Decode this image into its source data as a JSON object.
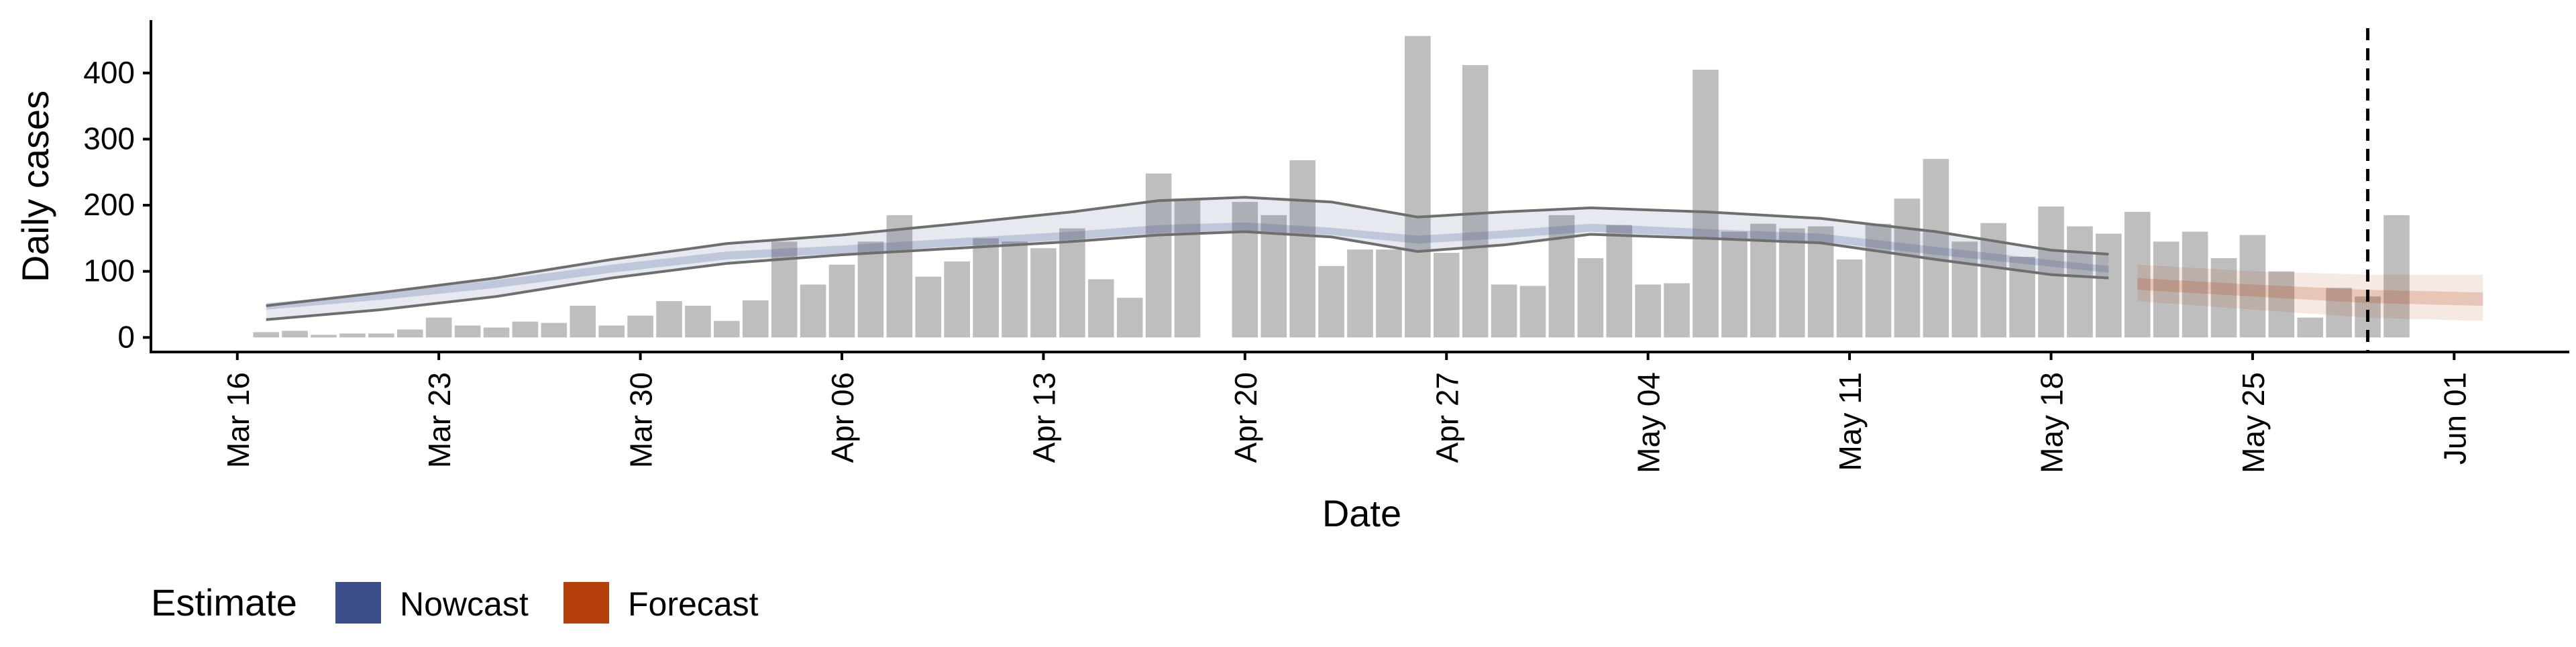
{
  "chart_data": {
    "type": "bar",
    "xlabel": "Date",
    "ylabel": "Daily cases",
    "x_tick_labels": [
      "Mar 16",
      "Mar 23",
      "Mar 30",
      "Apr 06",
      "Apr 13",
      "Apr 20",
      "Apr 27",
      "May 04",
      "May 11",
      "May 18",
      "May 25",
      "Jun 01"
    ],
    "x_tick_dates": [
      "2020-03-16",
      "2020-03-23",
      "2020-03-30",
      "2020-04-06",
      "2020-04-13",
      "2020-04-20",
      "2020-04-27",
      "2020-05-04",
      "2020-05-11",
      "2020-05-18",
      "2020-05-25",
      "2020-06-01"
    ],
    "y_ticks": [
      0,
      100,
      200,
      300,
      400
    ],
    "xlim": [
      "2020-03-13",
      "2020-06-05"
    ],
    "ylim": [
      -22,
      480
    ],
    "grid": false,
    "legend": {
      "title": "Estimate",
      "position": "bottom-left",
      "entries": [
        {
          "name": "Nowcast",
          "color": "#3b4e8a"
        },
        {
          "name": "Forecast",
          "color": "#b5400d"
        }
      ]
    },
    "reference_line": {
      "date": "2020-05-29",
      "style": "dashed"
    },
    "colors": {
      "bars": "#bebebe",
      "nowcast": "#3b4e8a",
      "forecast": "#b5400d",
      "bounds": "#6e6e6e",
      "axis": "#000000"
    },
    "bars": {
      "start_date": "2020-03-17",
      "values": [
        8,
        10,
        4,
        6,
        6,
        12,
        30,
        18,
        15,
        24,
        22,
        48,
        18,
        33,
        55,
        48,
        25,
        56,
        145,
        80,
        110,
        145,
        185,
        92,
        115,
        150,
        145,
        135,
        165,
        88,
        60,
        248,
        210,
        null,
        205,
        185,
        268,
        108,
        133,
        133,
        456,
        128,
        412,
        80,
        78,
        185,
        120,
        170,
        80,
        82,
        405,
        160,
        172,
        165,
        168,
        118,
        172,
        210,
        270,
        145,
        173,
        122,
        198,
        168,
        157,
        190,
        145,
        160,
        120,
        155,
        100,
        30,
        75,
        62,
        185
      ]
    },
    "nowcast": {
      "dates": [
        "2020-03-17",
        "2020-03-21",
        "2020-03-25",
        "2020-03-29",
        "2020-04-02",
        "2020-04-06",
        "2020-04-10",
        "2020-04-14",
        "2020-04-17",
        "2020-04-20",
        "2020-04-23",
        "2020-04-26",
        "2020-04-29",
        "2020-05-02",
        "2020-05-06",
        "2020-05-10",
        "2020-05-14",
        "2020-05-18",
        "2020-05-20"
      ],
      "lower": [
        42,
        57,
        75,
        98,
        118,
        127,
        138,
        148,
        158,
        162,
        155,
        142,
        150,
        160,
        152,
        145,
        125,
        107,
        98
      ],
      "upper": [
        52,
        67,
        87,
        110,
        130,
        139,
        150,
        160,
        170,
        174,
        166,
        154,
        162,
        172,
        164,
        157,
        137,
        117,
        108
      ],
      "outer_lower": [
        27,
        42,
        62,
        90,
        112,
        125,
        135,
        145,
        155,
        160,
        152,
        130,
        140,
        156,
        150,
        143,
        118,
        95,
        90
      ],
      "outer_upper": [
        48,
        68,
        90,
        118,
        142,
        155,
        172,
        190,
        207,
        212,
        205,
        182,
        190,
        196,
        190,
        180,
        160,
        132,
        126
      ]
    },
    "forecast": {
      "dates": [
        "2020-05-21",
        "2020-05-25",
        "2020-05-29",
        "2020-06-02"
      ],
      "lower": [
        55,
        42,
        30,
        25
      ],
      "upper": [
        110,
        100,
        95,
        95
      ],
      "mid_lower": [
        72,
        62,
        52,
        48
      ],
      "mid_upper": [
        90,
        80,
        72,
        68
      ]
    }
  }
}
